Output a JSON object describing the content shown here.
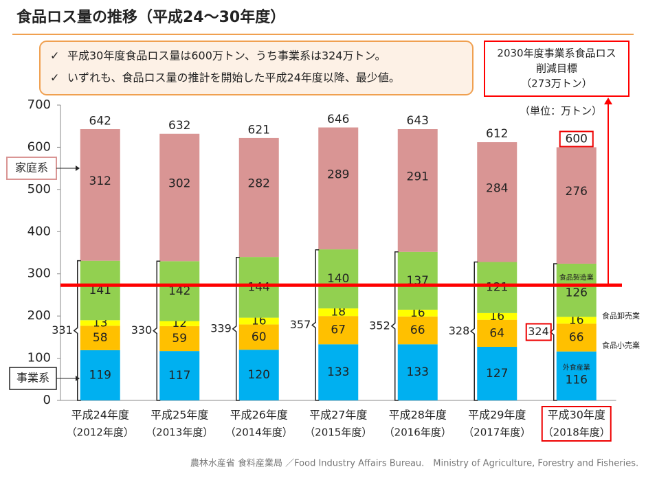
{
  "chart_data": {
    "type": "stacked_bar",
    "title": "食品ロス量の推移（平成24〜30年度）",
    "bullet_mark": "✓",
    "bullets": [
      "平成30年度食品ロス量は600万トン、うち事業系は324万トン。",
      "いずれも、食品ロス量の推計を開始した平成24年度以降、最少値。"
    ],
    "target": {
      "value": 273,
      "label": [
        "2030年度事業系食品ロス",
        "削減目標",
        "（273万トン）"
      ],
      "color": "#ff0000"
    },
    "unit": "（単位：万トン）",
    "categories": [
      [
        "平成24年度",
        "（2012年度）"
      ],
      [
        "平成25年度",
        "（2013年度）"
      ],
      [
        "平成26年度",
        "（2014年度）"
      ],
      [
        "平成27年度",
        "（2015年度）"
      ],
      [
        "平成28年度",
        "（2016年度）"
      ],
      [
        "平成29年度",
        "（2017年度）"
      ],
      [
        "平成30年度",
        "（2018年度）"
      ]
    ],
    "highlight": 6,
    "series": [
      {
        "name": "外食産業",
        "color": "#00b0f0",
        "values": [
          119,
          117,
          120,
          133,
          133,
          127,
          116
        ]
      },
      {
        "name": "食品小売業",
        "color": "#ffc000",
        "values": [
          58,
          59,
          60,
          67,
          66,
          64,
          66
        ]
      },
      {
        "name": "食品卸売業",
        "color": "#ffff00",
        "values": [
          13,
          12,
          16,
          18,
          16,
          16,
          16
        ]
      },
      {
        "name": "食品製造業",
        "color": "#92d050",
        "values": [
          141,
          142,
          144,
          140,
          137,
          121,
          126
        ]
      },
      {
        "name": "家庭系",
        "color": "#d99594",
        "values": [
          312,
          302,
          282,
          289,
          291,
          284,
          276
        ]
      }
    ],
    "business_label": "事業系",
    "business_totals": [
      331,
      330,
      339,
      357,
      352,
      328,
      324
    ],
    "totals": [
      642,
      632,
      621,
      646,
      643,
      612,
      600
    ],
    "ylim": [
      0,
      700
    ],
    "yticks": [
      0,
      100,
      200,
      300,
      400,
      500,
      600,
      700
    ],
    "footer": "農林水産省 食料産業局 ／Food Industry Affairs Bureau.　Ministry of Agriculture, Forestry and Fisheries."
  }
}
